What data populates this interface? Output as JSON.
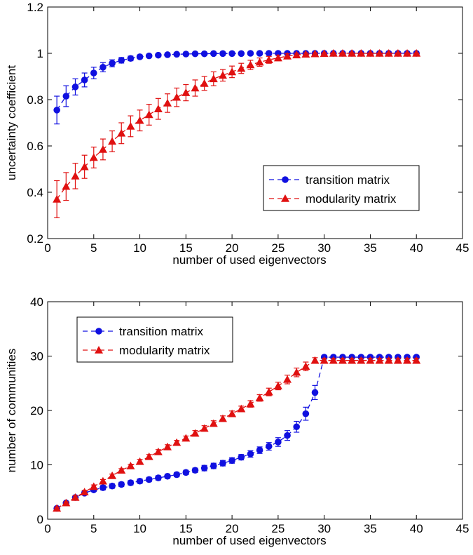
{
  "chart_data": [
    {
      "type": "scatter",
      "xlabel": "number of used eigenvectors",
      "ylabel": "uncertainty coefficient",
      "xlim": [
        0,
        45
      ],
      "ylim": [
        0.2,
        1.2
      ],
      "xticks": [
        0,
        5,
        10,
        15,
        20,
        25,
        30,
        35,
        40,
        45
      ],
      "yticks": [
        0.2,
        0.4,
        0.6,
        0.8,
        1,
        1.2
      ],
      "ytick_labels": [
        "0.2",
        "0.4",
        "0.6",
        "0.8",
        "1",
        "1.2"
      ],
      "grid": false,
      "legend_position": "lower-right",
      "series": [
        {
          "name": "transition matrix",
          "color": "#1010e0",
          "marker": "circle",
          "x": [
            1,
            2,
            3,
            4,
            5,
            6,
            7,
            8,
            9,
            10,
            11,
            12,
            13,
            14,
            15,
            16,
            17,
            18,
            19,
            20,
            21,
            22,
            23,
            24,
            25,
            26,
            27,
            28,
            29,
            30,
            31,
            32,
            33,
            34,
            35,
            36,
            37,
            38,
            39,
            40
          ],
          "y": [
            0.755,
            0.815,
            0.855,
            0.885,
            0.915,
            0.94,
            0.957,
            0.97,
            0.978,
            0.985,
            0.989,
            0.992,
            0.994,
            0.996,
            0.997,
            0.998,
            0.998,
            0.999,
            0.999,
            0.999,
            0.999,
            1,
            1,
            1,
            1,
            1,
            1,
            1,
            1,
            1,
            1,
            1,
            1,
            1,
            1,
            1,
            1,
            1,
            1,
            1
          ],
          "err": [
            0.06,
            0.045,
            0.035,
            0.03,
            0.025,
            0.02,
            0.015,
            0.012,
            0.01,
            0.008,
            0.006,
            0.005,
            0.004,
            0.003,
            0.003,
            0.002,
            0.002,
            0.002,
            0.001,
            0.001,
            0.001,
            0.001,
            0.001,
            0.001,
            0.001,
            0,
            0,
            0,
            0,
            0,
            0,
            0,
            0,
            0,
            0,
            0,
            0,
            0,
            0,
            0
          ]
        },
        {
          "name": "modularity matrix",
          "color": "#e01010",
          "marker": "triangle",
          "x": [
            1,
            2,
            3,
            4,
            5,
            6,
            7,
            8,
            9,
            10,
            11,
            12,
            13,
            14,
            15,
            16,
            17,
            18,
            19,
            20,
            21,
            22,
            23,
            24,
            25,
            26,
            27,
            28,
            29,
            30,
            31,
            32,
            33,
            34,
            35,
            36,
            37,
            38,
            39,
            40
          ],
          "y": [
            0.37,
            0.425,
            0.47,
            0.51,
            0.55,
            0.585,
            0.62,
            0.655,
            0.685,
            0.71,
            0.735,
            0.76,
            0.785,
            0.81,
            0.83,
            0.85,
            0.87,
            0.89,
            0.905,
            0.92,
            0.935,
            0.95,
            0.962,
            0.972,
            0.98,
            0.988,
            0.993,
            0.996,
            0.998,
            0.999,
            1,
            1,
            1,
            1,
            1,
            1,
            1,
            1,
            1,
            1
          ],
          "err": [
            0.08,
            0.06,
            0.055,
            0.05,
            0.045,
            0.045,
            0.045,
            0.045,
            0.045,
            0.045,
            0.045,
            0.045,
            0.04,
            0.04,
            0.035,
            0.035,
            0.03,
            0.03,
            0.025,
            0.025,
            0.022,
            0.02,
            0.018,
            0.015,
            0.012,
            0.01,
            0.008,
            0.006,
            0.004,
            0.003,
            0.002,
            0.002,
            0.001,
            0.001,
            0.001,
            0.001,
            0.001,
            0.001,
            0.001,
            0.001
          ]
        }
      ]
    },
    {
      "type": "scatter",
      "xlabel": "number of used eigenvectors",
      "ylabel": "number of communities",
      "xlim": [
        0,
        45
      ],
      "ylim": [
        0,
        40
      ],
      "xticks": [
        0,
        5,
        10,
        15,
        20,
        25,
        30,
        35,
        40,
        45
      ],
      "yticks": [
        0,
        10,
        20,
        30,
        40
      ],
      "ytick_labels": [
        "0",
        "10",
        "20",
        "30",
        "40"
      ],
      "grid": false,
      "legend_position": "top-left",
      "series": [
        {
          "name": "transition matrix",
          "color": "#1010e0",
          "marker": "circle",
          "x": [
            1,
            2,
            3,
            4,
            5,
            6,
            7,
            8,
            9,
            10,
            11,
            12,
            13,
            14,
            15,
            16,
            17,
            18,
            19,
            20,
            21,
            22,
            23,
            24,
            25,
            26,
            27,
            28,
            29,
            30,
            31,
            32,
            33,
            34,
            35,
            36,
            37,
            38,
            39,
            40
          ],
          "y": [
            2,
            3,
            4,
            4.8,
            5.4,
            5.8,
            6.1,
            6.4,
            6.7,
            7,
            7.3,
            7.6,
            7.9,
            8.2,
            8.6,
            9,
            9.4,
            9.8,
            10.3,
            10.8,
            11.4,
            12,
            12.7,
            13.4,
            14.2,
            15.4,
            17,
            19.4,
            23.3,
            29.8,
            29.8,
            29.8,
            29.8,
            29.8,
            29.8,
            29.8,
            29.8,
            29.8,
            29.8,
            29.8
          ],
          "err": [
            0.2,
            0.2,
            0.3,
            0.3,
            0.3,
            0.4,
            0.4,
            0.4,
            0.4,
            0.4,
            0.4,
            0.4,
            0.4,
            0.4,
            0.4,
            0.4,
            0.5,
            0.5,
            0.5,
            0.5,
            0.5,
            0.6,
            0.6,
            0.7,
            0.8,
            0.9,
            1,
            1.2,
            1.3,
            0.3,
            0.3,
            0.3,
            0.3,
            0.3,
            0.3,
            0.3,
            0.3,
            0.3,
            0.3,
            0.3
          ]
        },
        {
          "name": "modularity matrix",
          "color": "#e01010",
          "marker": "triangle",
          "x": [
            1,
            2,
            3,
            4,
            5,
            6,
            7,
            8,
            9,
            10,
            11,
            12,
            13,
            14,
            15,
            16,
            17,
            18,
            19,
            20,
            21,
            22,
            23,
            24,
            25,
            26,
            27,
            28,
            29,
            30,
            31,
            32,
            33,
            34,
            35,
            36,
            37,
            38,
            39,
            40
          ],
          "y": [
            2,
            3,
            4,
            5,
            6,
            7,
            8,
            9,
            9.8,
            10.6,
            11.5,
            12.4,
            13.3,
            14.1,
            14.9,
            15.8,
            16.7,
            17.6,
            18.5,
            19.4,
            20.3,
            21.2,
            22.3,
            23.4,
            24.5,
            25.7,
            27,
            28.1,
            29.2,
            29.2,
            29.2,
            29.2,
            29.2,
            29.2,
            29.2,
            29.2,
            29.2,
            29.2,
            29.2,
            29.2
          ],
          "err": [
            0.2,
            0.2,
            0.3,
            0.3,
            0.3,
            0.3,
            0.3,
            0.3,
            0.3,
            0.4,
            0.4,
            0.4,
            0.4,
            0.4,
            0.4,
            0.5,
            0.5,
            0.5,
            0.5,
            0.5,
            0.5,
            0.6,
            0.6,
            0.7,
            0.7,
            0.8,
            0.8,
            0.8,
            0.5,
            0.4,
            0.4,
            0.4,
            0.4,
            0.4,
            0.4,
            0.4,
            0.4,
            0.4,
            0.4,
            0.4
          ]
        }
      ]
    }
  ]
}
